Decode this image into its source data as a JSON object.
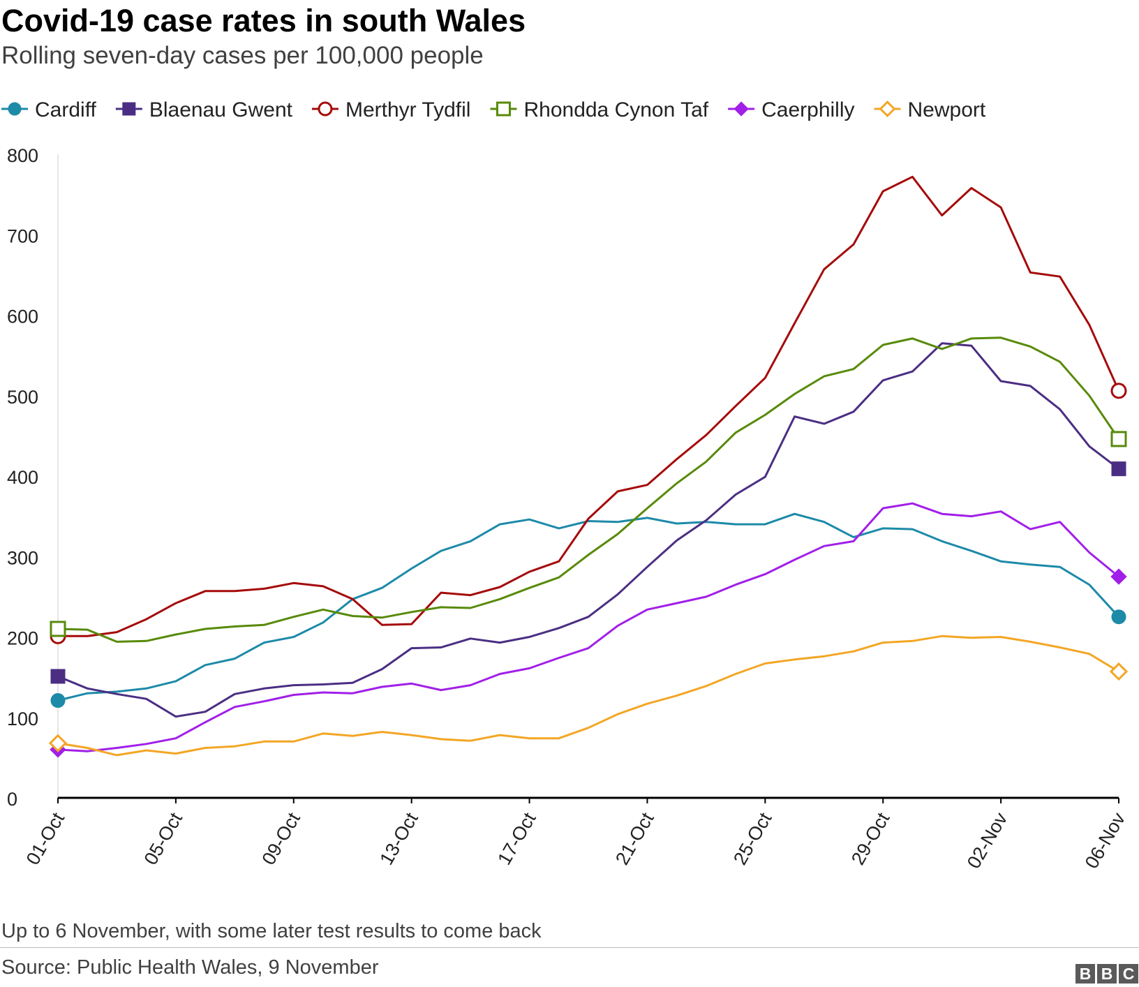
{
  "title": "Covid-19 case rates in south Wales",
  "subtitle": "Rolling seven-day cases per 100,000 people",
  "note": "Up to 6 November, with some later test results to come back",
  "source": "Source: Public Health Wales, 9 November",
  "logo": {
    "b1": "B",
    "b2": "B",
    "c": "C"
  },
  "chart_data": {
    "type": "line",
    "title": "Covid-19 case rates in south Wales",
    "ylabel": "Rolling seven-day cases per 100,000 people",
    "xlabel": "",
    "ylim": [
      0,
      800
    ],
    "yticks": [
      0,
      100,
      200,
      300,
      400,
      500,
      600,
      700,
      800
    ],
    "xtick_labels": [
      "01-Oct",
      "05-Oct",
      "09-Oct",
      "13-Oct",
      "17-Oct",
      "21-Oct",
      "25-Oct",
      "29-Oct",
      "02-Nov",
      "06-Nov"
    ],
    "xtick_indices": [
      0,
      4,
      8,
      12,
      16,
      20,
      24,
      28,
      32,
      36
    ],
    "grid": false,
    "legend_position": "top",
    "dates": [
      "01-Oct",
      "02-Oct",
      "03-Oct",
      "04-Oct",
      "05-Oct",
      "06-Oct",
      "07-Oct",
      "08-Oct",
      "09-Oct",
      "10-Oct",
      "11-Oct",
      "12-Oct",
      "13-Oct",
      "14-Oct",
      "15-Oct",
      "16-Oct",
      "17-Oct",
      "18-Oct",
      "19-Oct",
      "20-Oct",
      "21-Oct",
      "22-Oct",
      "23-Oct",
      "24-Oct",
      "25-Oct",
      "26-Oct",
      "27-Oct",
      "28-Oct",
      "29-Oct",
      "30-Oct",
      "31-Oct",
      "01-Nov",
      "02-Nov",
      "03-Nov",
      "04-Nov",
      "05-Nov",
      "06-Nov"
    ],
    "series": [
      {
        "name": "Cardiff",
        "color": "#1d8aa8",
        "marker": "circle-filled",
        "values": [
          121,
          130,
          132,
          136,
          145,
          165,
          173,
          193,
          200,
          218,
          247,
          261,
          285,
          307,
          319,
          340,
          346,
          335,
          344,
          343,
          348,
          341,
          343,
          340,
          340,
          353,
          343,
          324,
          335,
          334,
          319,
          307,
          294,
          290,
          287,
          265,
          225
        ]
      },
      {
        "name": "Blaenau Gwent",
        "color": "#4b2e83",
        "marker": "square-filled",
        "values": [
          151,
          136,
          129,
          123,
          101,
          107,
          129,
          136,
          140,
          141,
          143,
          160,
          186,
          187,
          198,
          193,
          200,
          211,
          225,
          253,
          287,
          320,
          345,
          377,
          399,
          474,
          465,
          480,
          519,
          530,
          565,
          562,
          518,
          512,
          483,
          437,
          409
        ]
      },
      {
        "name": "Merthyr Tydfil",
        "color": "#a50a0a",
        "marker": "circle-open",
        "values": [
          201,
          201,
          206,
          222,
          242,
          257,
          257,
          260,
          267,
          263,
          247,
          215,
          216,
          255,
          252,
          262,
          281,
          294,
          347,
          381,
          389,
          421,
          451,
          487,
          522,
          590,
          657,
          688,
          754,
          772,
          724,
          758,
          734,
          653,
          648,
          588,
          506
        ]
      },
      {
        "name": "Rhondda Cynon Taf",
        "color": "#588a0a",
        "marker": "square-open",
        "values": [
          210,
          209,
          194,
          195,
          203,
          210,
          213,
          215,
          225,
          234,
          226,
          224,
          231,
          237,
          236,
          247,
          261,
          274,
          302,
          328,
          360,
          391,
          418,
          454,
          476,
          502,
          524,
          533,
          563,
          571,
          558,
          571,
          572,
          561,
          542,
          500,
          446
        ]
      },
      {
        "name": "Caerphilly",
        "color": "#a11fe8",
        "marker": "diamond-filled",
        "values": [
          60,
          58,
          62,
          67,
          74,
          94,
          113,
          120,
          128,
          131,
          130,
          138,
          142,
          134,
          140,
          154,
          161,
          174,
          186,
          214,
          234,
          242,
          250,
          265,
          278,
          296,
          313,
          319,
          360,
          366,
          353,
          350,
          356,
          334,
          343,
          305,
          275
        ]
      },
      {
        "name": "Newport",
        "color": "#f3a625",
        "marker": "diamond-open",
        "values": [
          68,
          62,
          53,
          59,
          55,
          62,
          64,
          70,
          70,
          80,
          77,
          82,
          78,
          73,
          71,
          78,
          74,
          74,
          87,
          104,
          117,
          127,
          139,
          154,
          167,
          172,
          176,
          182,
          193,
          195,
          201,
          199,
          200,
          194,
          187,
          179,
          157
        ]
      }
    ]
  }
}
